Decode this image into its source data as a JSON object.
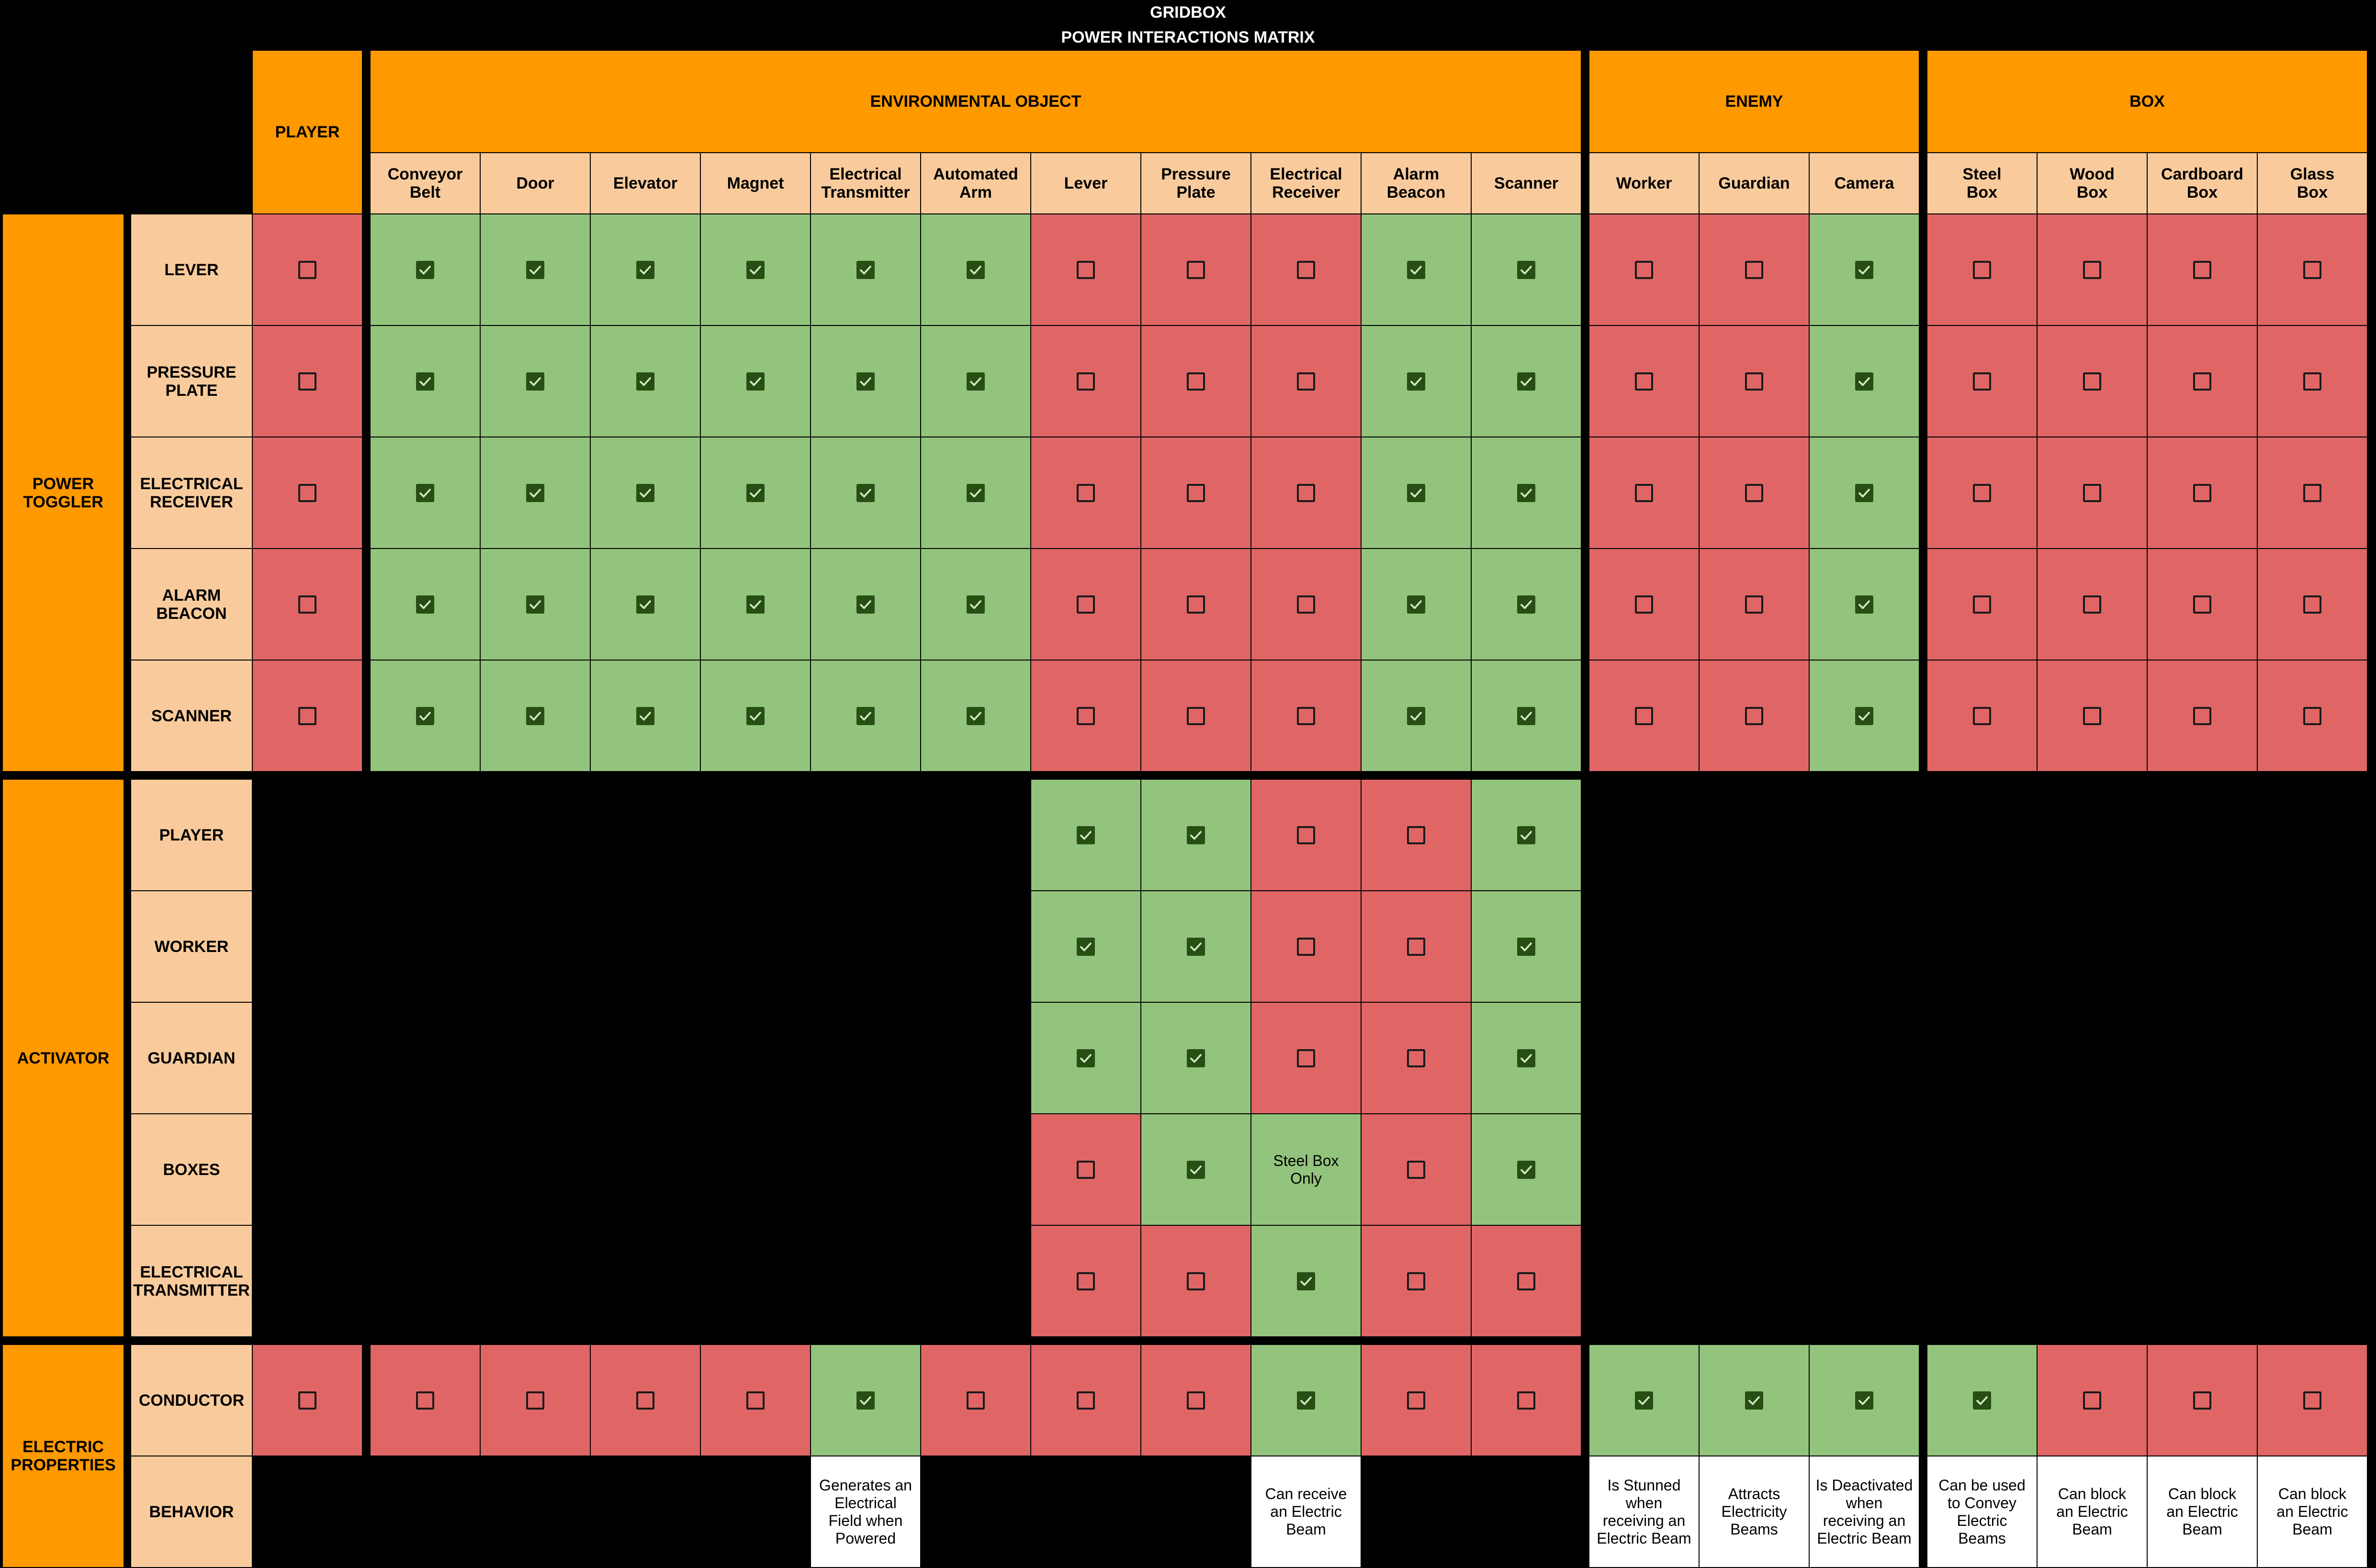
{
  "header": {
    "app_title": "GRIDBOX",
    "matrix_title": "POWER INTERACTIONS MATRIX"
  },
  "column_groups": [
    {
      "label": "PLAYER"
    },
    {
      "label": "ENVIRONMENTAL OBJECT"
    },
    {
      "label": "ENEMY"
    },
    {
      "label": "BOX"
    }
  ],
  "columns": [
    {
      "label": "",
      "group": 0
    },
    {
      "label": "Conveyor\nBelt",
      "group": 1
    },
    {
      "label": "Door",
      "group": 1
    },
    {
      "label": "Elevator",
      "group": 1
    },
    {
      "label": "Magnet",
      "group": 1
    },
    {
      "label": "Electrical\nTransmitter",
      "group": 1
    },
    {
      "label": "Automated\nArm",
      "group": 1
    },
    {
      "label": "Lever",
      "group": 1
    },
    {
      "label": "Pressure\nPlate",
      "group": 1
    },
    {
      "label": "Electrical\nReceiver",
      "group": 1
    },
    {
      "label": "Alarm\nBeacon",
      "group": 1
    },
    {
      "label": "Scanner",
      "group": 1
    },
    {
      "label": "Worker",
      "group": 2
    },
    {
      "label": "Guardian",
      "group": 2
    },
    {
      "label": "Camera",
      "group": 2
    },
    {
      "label": "Steel\nBox",
      "group": 3
    },
    {
      "label": "Wood\nBox",
      "group": 3
    },
    {
      "label": "Cardboard\nBox",
      "group": 3
    },
    {
      "label": "Glass\nBox",
      "group": 3
    }
  ],
  "row_groups": [
    {
      "label": "POWER\nTOGGLER"
    },
    {
      "label": "ACTIVATOR"
    },
    {
      "label": "ELECTRIC\nPROPERTIES"
    }
  ],
  "rows": [
    {
      "label": "LEVER",
      "group": 0,
      "cells": [
        "N",
        "Y",
        "Y",
        "Y",
        "Y",
        "Y",
        "Y",
        "N",
        "N",
        "N",
        "Y",
        "Y",
        "N",
        "N",
        "Y",
        "N",
        "N",
        "N",
        "N"
      ]
    },
    {
      "label": "PRESSURE\nPLATE",
      "group": 0,
      "cells": [
        "N",
        "Y",
        "Y",
        "Y",
        "Y",
        "Y",
        "Y",
        "N",
        "N",
        "N",
        "Y",
        "Y",
        "N",
        "N",
        "Y",
        "N",
        "N",
        "N",
        "N"
      ]
    },
    {
      "label": "ELECTRICAL\nRECEIVER",
      "group": 0,
      "cells": [
        "N",
        "Y",
        "Y",
        "Y",
        "Y",
        "Y",
        "Y",
        "N",
        "N",
        "N",
        "Y",
        "Y",
        "N",
        "N",
        "Y",
        "N",
        "N",
        "N",
        "N"
      ]
    },
    {
      "label": "ALARM\nBEACON",
      "group": 0,
      "cells": [
        "N",
        "Y",
        "Y",
        "Y",
        "Y",
        "Y",
        "Y",
        "N",
        "N",
        "N",
        "Y",
        "Y",
        "N",
        "N",
        "Y",
        "N",
        "N",
        "N",
        "N"
      ]
    },
    {
      "label": "SCANNER",
      "group": 0,
      "cells": [
        "N",
        "Y",
        "Y",
        "Y",
        "Y",
        "Y",
        "Y",
        "N",
        "N",
        "N",
        "Y",
        "Y",
        "N",
        "N",
        "Y",
        "N",
        "N",
        "N",
        "N"
      ]
    },
    {
      "label": "PLAYER",
      "group": 1,
      "cells": [
        "-",
        "-",
        "-",
        "-",
        "-",
        "-",
        "-",
        "Y",
        "Y",
        "N",
        "N",
        "Y",
        "-",
        "-",
        "-",
        "-",
        "-",
        "-",
        "-"
      ]
    },
    {
      "label": "WORKER",
      "group": 1,
      "cells": [
        "-",
        "-",
        "-",
        "-",
        "-",
        "-",
        "-",
        "Y",
        "Y",
        "N",
        "N",
        "Y",
        "-",
        "-",
        "-",
        "-",
        "-",
        "-",
        "-"
      ]
    },
    {
      "label": "GUARDIAN",
      "group": 1,
      "cells": [
        "-",
        "-",
        "-",
        "-",
        "-",
        "-",
        "-",
        "Y",
        "Y",
        "N",
        "N",
        "Y",
        "-",
        "-",
        "-",
        "-",
        "-",
        "-",
        "-"
      ]
    },
    {
      "label": "BOXES",
      "group": 1,
      "cells": [
        "-",
        "-",
        "-",
        "-",
        "-",
        "-",
        "-",
        "N",
        "Y",
        "T:Steel Box\nOnly",
        "N",
        "Y",
        "-",
        "-",
        "-",
        "-",
        "-",
        "-",
        "-"
      ]
    },
    {
      "label": "ELECTRICAL\nTRANSMITTER",
      "group": 1,
      "cells": [
        "-",
        "-",
        "-",
        "-",
        "-",
        "-",
        "-",
        "N",
        "N",
        "Y",
        "N",
        "N",
        "-",
        "-",
        "-",
        "-",
        "-",
        "-",
        "-"
      ]
    },
    {
      "label": "CONDUCTOR",
      "group": 2,
      "cells": [
        "N",
        "N",
        "N",
        "N",
        "N",
        "Y",
        "N",
        "N",
        "N",
        "Y",
        "N",
        "N",
        "Y",
        "Y",
        "Y",
        "Y",
        "N",
        "N",
        "N"
      ]
    },
    {
      "label": "BEHAVIOR",
      "group": 2,
      "cells": [
        "-",
        "-",
        "-",
        "-",
        "-",
        "W:Generates an\nElectrical\nField when\nPowered",
        "-",
        "-",
        "-",
        "W:Can receive\nan Electric\nBeam",
        "-",
        "-",
        "W:Is Stunned\nwhen\nreceiving an\nElectric Beam",
        "W:Attracts\nElectricity\nBeams",
        "W:Is Deactivated\nwhen\nreceiving an\nElectric Beam",
        "W:Can be used\nto Convey\nElectric\nBeams",
        "W:Can block\nan Electric\nBeam",
        "W:Can block\nan Electric\nBeam",
        "W:Can block\nan Electric\nBeam"
      ]
    }
  ],
  "legend_meaning": {
    "Y": "checked",
    "N": "unchecked"
  },
  "colors": {
    "group_header": "#ff9900",
    "sub_header": "#f9cb9c",
    "allowed": "#93c47d",
    "blocked": "#e06666",
    "checkbox_checked": "#274e13"
  },
  "icons": {
    "checked": "checked-box-icon",
    "unchecked": "empty-box-icon"
  }
}
